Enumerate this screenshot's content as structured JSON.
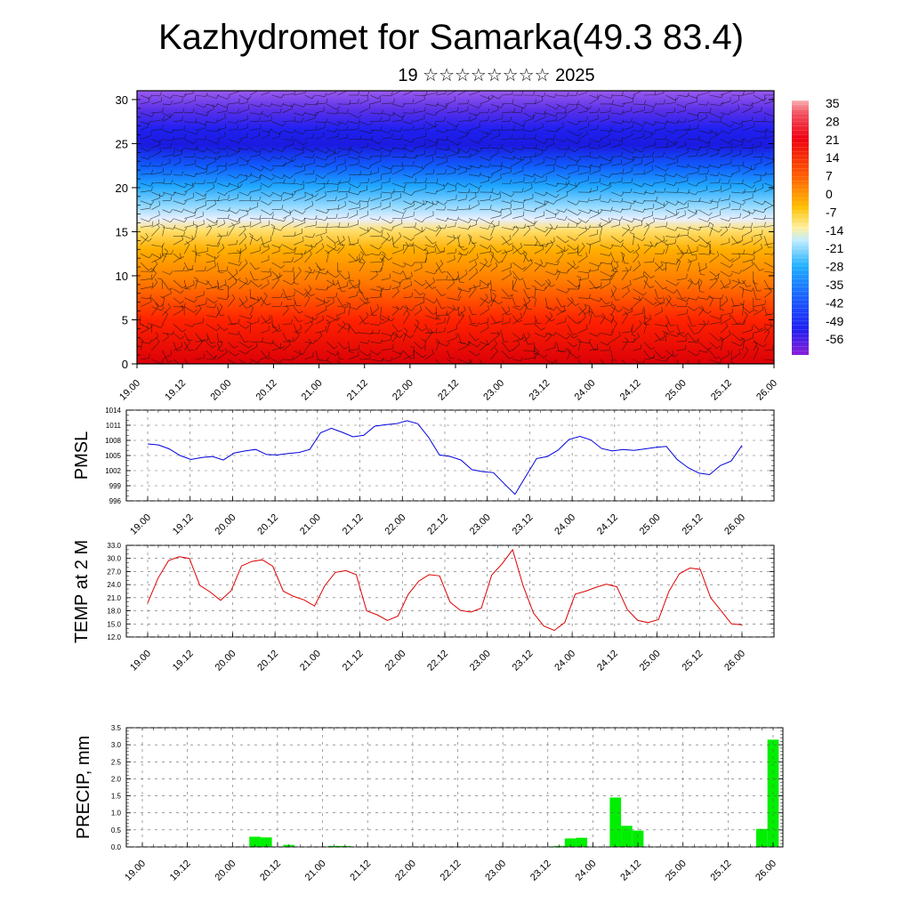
{
  "title": "Kazhydromet for Samarka(49.3 83.4)",
  "subtitle": "19 ☆☆☆☆☆☆☆☆ 2025",
  "time_labels": [
    "19.00",
    "19.12",
    "20.00",
    "20.12",
    "21.00",
    "21.12",
    "22.00",
    "22.12",
    "23.00",
    "23.12",
    "24.00",
    "24.12",
    "25.00",
    "25.12",
    "26.00"
  ],
  "chart_data": [
    {
      "type": "heatmap",
      "name": "cross-section",
      "xlabel": "",
      "ylabel": "",
      "yticks": [
        0,
        5,
        10,
        15,
        20,
        25,
        30
      ],
      "ylim": [
        0,
        31
      ],
      "colorbar_labels": [
        "35",
        "28",
        "21",
        "14",
        "7",
        "0",
        "-7",
        "-14",
        "-21",
        "-28",
        "-35",
        "-42",
        "-49",
        "-56"
      ],
      "colorbar_values": [
        35,
        28,
        21,
        14,
        7,
        0,
        -7,
        -14,
        -21,
        -28,
        -35,
        -42,
        -49,
        -56
      ],
      "barbs": true,
      "colors": {
        "warm": "#e8000a",
        "mid": "#ffd040",
        "cold": "#1e1ef0",
        "min": "#8a1fd8"
      }
    },
    {
      "type": "line",
      "name": "pmsl",
      "ylabel": "PMSL",
      "yticks": [
        "996",
        "999",
        "1002",
        "1005",
        "1008",
        "1011",
        "1014"
      ],
      "ylim": [
        996,
        1014
      ],
      "color": "#0000dd",
      "values": [
        1007.3,
        1007.1,
        1006.3,
        1005.0,
        1004.2,
        1004.6,
        1004.8,
        1004.1,
        1005.5,
        1005.9,
        1006.2,
        1005.2,
        1005.1,
        1005.4,
        1005.6,
        1006.2,
        1009.5,
        1010.4,
        1009.6,
        1008.7,
        1009.0,
        1010.8,
        1011.1,
        1011.3,
        1011.9,
        1011.3,
        1008.6,
        1005.1,
        1004.8,
        1004.1,
        1002.2,
        1001.8,
        1001.6,
        999.4,
        997.3,
        1000.9,
        1004.4,
        1004.8,
        1006.1,
        1008.2,
        1008.8,
        1008.1,
        1006.4,
        1005.9,
        1006.2,
        1006.0,
        1006.3,
        1006.6,
        1006.8,
        1004.2,
        1002.6,
        1001.5,
        1001.2,
        1003.0,
        1003.9,
        1007.0
      ]
    },
    {
      "type": "line",
      "name": "temp",
      "ylabel": "TEMP at 2 M",
      "yticks": [
        "12.0",
        "15.0",
        "18.0",
        "21.0",
        "24.0",
        "27.0",
        "30.0",
        "33.0"
      ],
      "ylim": [
        12,
        33
      ],
      "color": "#dd0000",
      "values": [
        19.8,
        25.5,
        29.5,
        30.4,
        30.0,
        23.8,
        22.3,
        20.4,
        22.6,
        28.3,
        29.3,
        29.7,
        28.2,
        22.5,
        21.3,
        20.5,
        19.1,
        23.8,
        26.8,
        27.2,
        26.3,
        18.0,
        17.1,
        15.8,
        16.8,
        21.8,
        24.8,
        26.3,
        26.0,
        20.0,
        18.1,
        17.7,
        18.6,
        26.2,
        28.8,
        32.0,
        23.8,
        17.5,
        14.5,
        13.5,
        15.3,
        21.8,
        22.5,
        23.4,
        24.1,
        23.5,
        18.3,
        15.8,
        15.3,
        16.0,
        22.5,
        26.5,
        27.8,
        27.5,
        21.0,
        18.0,
        15.0,
        14.8
      ]
    },
    {
      "type": "bar",
      "name": "precip",
      "ylabel": "PRECIP, mm",
      "yticks": [
        "0.0",
        "0.5",
        "1.0",
        "1.5",
        "2.0",
        "2.5",
        "3.0",
        "3.5"
      ],
      "ylim": [
        0,
        3.5
      ],
      "color": "#00ee00",
      "values": [
        0,
        0,
        0,
        0,
        0,
        0,
        0,
        0,
        0,
        0,
        0.3,
        0.28,
        0,
        0.06,
        0,
        0,
        0,
        0.03,
        0.03,
        0,
        0,
        0,
        0,
        0,
        0,
        0,
        0,
        0,
        0,
        0,
        0,
        0,
        0,
        0,
        0,
        0,
        0,
        0.03,
        0.25,
        0.27,
        0,
        0,
        1.45,
        0.62,
        0.48,
        0,
        0,
        0,
        0,
        0,
        0,
        0,
        0,
        0,
        0,
        0.53,
        3.15
      ]
    }
  ]
}
